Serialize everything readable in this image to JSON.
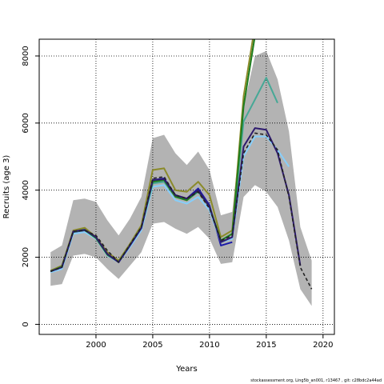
{
  "chart_data": {
    "type": "line",
    "xlabel": "Years",
    "ylabel": "Recruits (age 3)",
    "xlim": [
      1995,
      2021
    ],
    "ylim": [
      -300,
      8500
    ],
    "xticks": [
      2000,
      2005,
      2010,
      2015,
      2020
    ],
    "yticks": [
      0,
      2000,
      4000,
      6000,
      8000
    ],
    "grid": true,
    "band": {
      "color": "#b3b3b3",
      "x": [
        1996,
        1997,
        1998,
        1999,
        2000,
        2001,
        2002,
        2003,
        2004,
        2005,
        2006,
        2007,
        2008,
        2009,
        2010,
        2011,
        2012,
        2013,
        2014,
        2015,
        2016,
        2017,
        2018,
        2019
      ],
      "upper": [
        2150,
        2350,
        3700,
        3750,
        3650,
        3100,
        2650,
        3150,
        3800,
        5550,
        5650,
        5100,
        4750,
        5150,
        4600,
        3250,
        3350,
        6500,
        8000,
        8150,
        7300,
        5750,
        2900,
        1900
      ],
      "lower": [
        1150,
        1200,
        2050,
        2100,
        2000,
        1650,
        1350,
        1750,
        2150,
        3000,
        3050,
        2850,
        2700,
        2900,
        2550,
        1800,
        1850,
        3800,
        4150,
        3950,
        3500,
        2500,
        1050,
        550
      ]
    },
    "series": [
      {
        "color": "#1a1aa8",
        "x": [
          1996,
          1997,
          1998,
          1999,
          2000,
          2001,
          2002,
          2003,
          2004,
          2005,
          2006,
          2007,
          2008,
          2009,
          2010,
          2011,
          2012
        ],
        "values": [
          1600,
          1680,
          2750,
          2800,
          2600,
          2100,
          1850,
          2350,
          2850,
          4300,
          4350,
          3850,
          3750,
          4050,
          3550,
          2350,
          2450
        ]
      },
      {
        "color": "#87cefa",
        "x": [
          1996,
          1997,
          1998,
          1999,
          2000,
          2001,
          2002,
          2003,
          2004,
          2005,
          2006,
          2007,
          2008,
          2009,
          2010,
          2011,
          2012,
          2013,
          2014,
          2015,
          2016,
          2017
        ],
        "values": [
          1550,
          1650,
          2700,
          2750,
          2550,
          2050,
          1850,
          2300,
          2800,
          4100,
          4150,
          3700,
          3600,
          3800,
          3400,
          2450,
          2550,
          5000,
          5600,
          5600,
          5200,
          4700
        ]
      },
      {
        "color": "#46a896",
        "x": [
          1996,
          1997,
          1998,
          1999,
          2000,
          2001,
          2002,
          2003,
          2004,
          2005,
          2006,
          2007,
          2008,
          2009,
          2010,
          2011,
          2012,
          2013,
          2014,
          2015,
          2016
        ],
        "values": [
          1580,
          1700,
          2780,
          2830,
          2580,
          2080,
          1870,
          2380,
          2900,
          4200,
          4250,
          3800,
          3700,
          3950,
          3500,
          2500,
          2700,
          6050,
          6700,
          7350,
          6600
        ]
      },
      {
        "color": "#8b8b2a",
        "x": [
          1996,
          1997,
          1998,
          1999,
          2000,
          2001,
          2002,
          2003,
          2004,
          2005,
          2006,
          2007,
          2008,
          2009,
          2010,
          2011,
          2012,
          2013,
          2014
        ],
        "values": [
          1600,
          1750,
          2800,
          2880,
          2600,
          2150,
          1900,
          2400,
          2950,
          4600,
          4650,
          4000,
          3950,
          4250,
          3850,
          2600,
          2800,
          6800,
          8900
        ]
      },
      {
        "color": "#1e7d1e",
        "x": [
          1996,
          1997,
          1998,
          1999,
          2000,
          2001,
          2002,
          2003,
          2004,
          2005,
          2006,
          2007,
          2008,
          2009,
          2010,
          2011,
          2012,
          2013,
          2014
        ],
        "values": [
          1580,
          1720,
          2760,
          2810,
          2570,
          2070,
          1860,
          2360,
          2880,
          4250,
          4300,
          3800,
          3700,
          3980,
          3500,
          2500,
          2700,
          6500,
          8600
        ]
      },
      {
        "color": "#2d1a6e",
        "x": [
          1996,
          1997,
          1998,
          1999,
          2000,
          2001,
          2002,
          2003,
          2004,
          2005,
          2006,
          2007,
          2008,
          2009,
          2010,
          2011,
          2012,
          2013,
          2014,
          2015,
          2016,
          2017,
          2018
        ],
        "values": [
          1580,
          1700,
          2770,
          2820,
          2600,
          2100,
          1850,
          2350,
          2870,
          4300,
          4330,
          3850,
          3750,
          4000,
          3500,
          2450,
          2600,
          5300,
          5850,
          5800,
          5100,
          3850,
          1750
        ]
      },
      {
        "color": "#222222",
        "dashed": true,
        "x": [
          1996,
          1997,
          1998,
          1999,
          2000,
          2001,
          2002,
          2003,
          2004,
          2005,
          2006,
          2007,
          2008,
          2009,
          2010,
          2011,
          2012,
          2013,
          2014,
          2015,
          2016,
          2017,
          2018,
          2019
        ],
        "values": [
          1580,
          1700,
          2780,
          2800,
          2650,
          2200,
          1850,
          2380,
          2900,
          4350,
          4400,
          3850,
          3750,
          3950,
          3450,
          2500,
          2650,
          5100,
          5700,
          5650,
          5200,
          3800,
          1700,
          1050
        ]
      }
    ]
  },
  "footnote": "stockassessment.org, Ling5b_an001, r13467 , git: c28bdc2a44ad"
}
